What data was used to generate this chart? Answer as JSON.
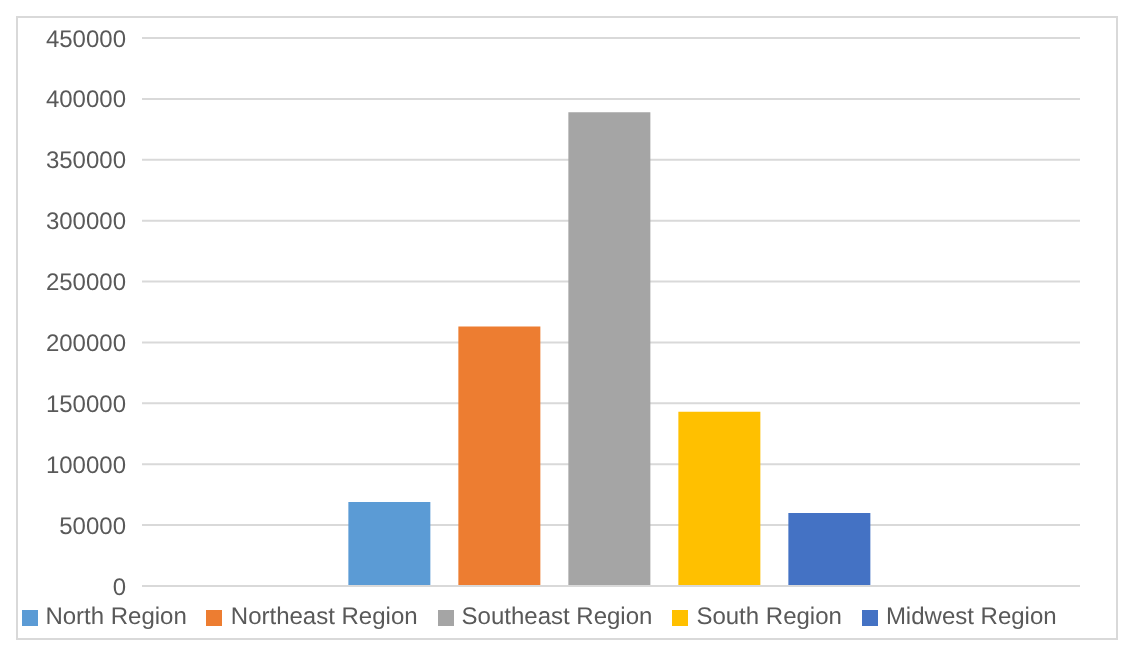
{
  "chart_data": {
    "type": "bar",
    "categories": [
      null
    ],
    "series": [
      {
        "name": "North Region",
        "color": "#5b9bd5",
        "values": [
          69000
        ]
      },
      {
        "name": "Northeast Region",
        "color": "#ed7d31",
        "values": [
          213000
        ]
      },
      {
        "name": "Southeast Region",
        "color": "#a5a5a5",
        "values": [
          389000
        ]
      },
      {
        "name": "South Region",
        "color": "#ffc000",
        "values": [
          143000
        ]
      },
      {
        "name": "Midwest Region",
        "color": "#4472c4",
        "values": [
          60000
        ]
      }
    ],
    "ylim": [
      0,
      450000
    ],
    "yticks": [
      0,
      50000,
      100000,
      150000,
      200000,
      250000,
      300000,
      350000,
      400000,
      450000
    ],
    "grid": "y",
    "legend": "bottom"
  }
}
